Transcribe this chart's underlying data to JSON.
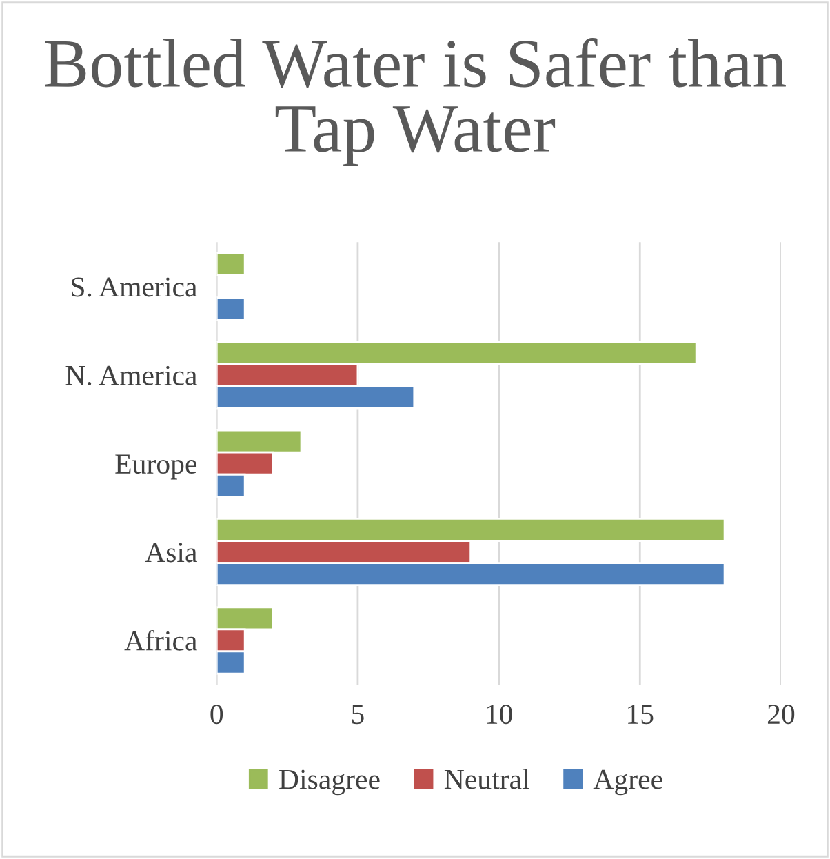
{
  "chart_data": {
    "type": "bar",
    "orientation": "horizontal",
    "title": "Bottled Water is Safer than Tap Water",
    "categories": [
      "S. America",
      "N. America",
      "Europe",
      "Asia",
      "Africa"
    ],
    "series": [
      {
        "name": "Disagree",
        "color": "#9bbb59",
        "values": [
          1,
          17,
          3,
          18,
          2
        ]
      },
      {
        "name": "Neutral",
        "color": "#c0504d",
        "values": [
          null,
          5,
          2,
          9,
          1
        ]
      },
      {
        "name": "Agree",
        "color": "#4f81bd",
        "values": [
          1,
          7,
          1,
          18,
          1
        ]
      }
    ],
    "xlim": [
      0,
      20
    ],
    "xticks": [
      0,
      5,
      10,
      15,
      20
    ],
    "grid": "x",
    "legend": "bottom"
  }
}
